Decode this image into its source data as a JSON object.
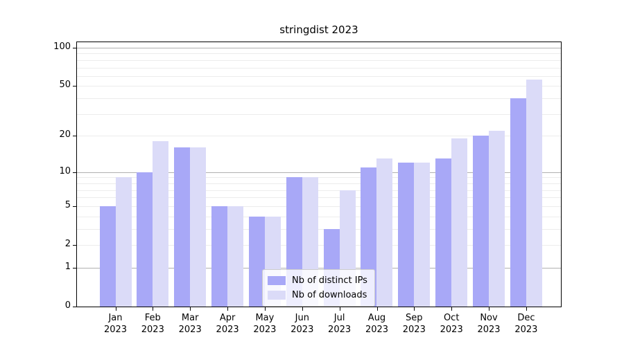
{
  "title": "stringdist 2023",
  "colors": {
    "ips": "#a8a8f7",
    "downloads": "#dbdbf8",
    "grid_major": "#b0b0b0",
    "grid_minor": "#ececec",
    "axis": "#000000",
    "legend_border": "#cccccc"
  },
  "legend": {
    "items": [
      {
        "label": "Nb of distinct IPs",
        "color_key": "ips"
      },
      {
        "label": "Nb of downloads",
        "color_key": "downloads"
      }
    ]
  },
  "chart_data": {
    "type": "bar",
    "title": "stringdist 2023",
    "scale": "log1p",
    "categories": [
      "Jan 2023",
      "Feb 2023",
      "Mar 2023",
      "Apr 2023",
      "May 2023",
      "Jun 2023",
      "Jul 2023",
      "Aug 2023",
      "Sep 2023",
      "Oct 2023",
      "Nov 2023",
      "Dec 2023"
    ],
    "series": [
      {
        "name": "Nb of distinct IPs",
        "color_key": "ips",
        "values": [
          5,
          10,
          16,
          5,
          4,
          9,
          3,
          11,
          12,
          13,
          20,
          40
        ]
      },
      {
        "name": "Nb of downloads",
        "color_key": "downloads",
        "values": [
          9,
          18,
          16,
          5,
          4,
          9,
          7,
          13,
          12,
          19,
          22,
          56
        ]
      }
    ],
    "xlabel": "",
    "ylabel": "",
    "ylim": [
      0,
      100
    ],
    "y_ticks": [
      0,
      1,
      2,
      5,
      10,
      20,
      50,
      100
    ],
    "gridlines": {
      "major": [
        1,
        10,
        100
      ],
      "minor": [
        2,
        3,
        4,
        5,
        6,
        7,
        8,
        9,
        20,
        30,
        40,
        50,
        60,
        70,
        80,
        90
      ]
    },
    "grid": "on",
    "legend_position": "lower center"
  }
}
